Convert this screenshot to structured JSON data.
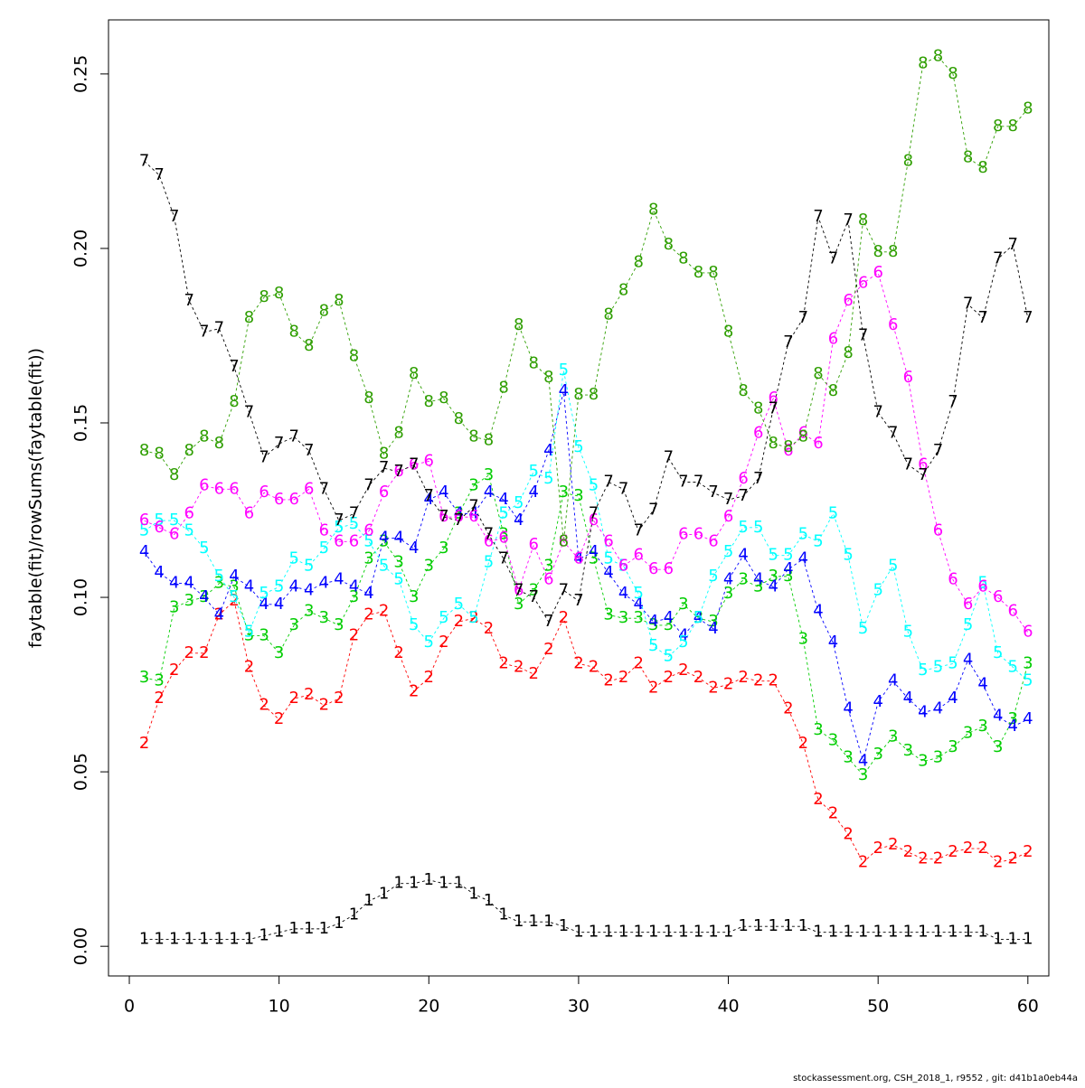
{
  "chart_data": {
    "type": "line",
    "ylabel": "faytable(fit)/rowSums(faytable(fit))",
    "footer": "stockassessment.org, CSH_2018_1, r9552 , git: d41b1a0eb44a",
    "x": [
      1,
      2,
      3,
      4,
      5,
      6,
      7,
      8,
      9,
      10,
      11,
      12,
      13,
      14,
      15,
      16,
      17,
      18,
      19,
      20,
      21,
      22,
      23,
      24,
      25,
      26,
      27,
      28,
      29,
      30,
      31,
      32,
      33,
      34,
      35,
      36,
      37,
      38,
      39,
      40,
      41,
      42,
      43,
      44,
      45,
      46,
      47,
      48,
      49,
      50,
      51,
      52,
      53,
      54,
      55,
      56,
      57,
      58,
      59,
      60
    ],
    "xlim": [
      -1.39,
      61.4
    ],
    "xticks": [
      0,
      10,
      20,
      30,
      40,
      50,
      60
    ],
    "ylim": [
      -0.0085,
      0.2655
    ],
    "yticks": [
      {
        "value": 0,
        "label": "0.00"
      },
      0.05,
      {
        "value": 0.1,
        "label": "0.10"
      },
      0.15,
      {
        "value": 0.2,
        "label": "0.20"
      },
      0.25
    ],
    "series": [
      {
        "name": "1",
        "color": "#000000",
        "values": [
          0.002,
          0.002,
          0.002,
          0.002,
          0.002,
          0.002,
          0.002,
          0.002,
          0.003,
          0.004,
          0.005,
          0.005,
          0.005,
          0.0065,
          0.009,
          0.013,
          0.015,
          0.018,
          0.018,
          0.019,
          0.018,
          0.018,
          0.015,
          0.013,
          0.009,
          0.007,
          0.007,
          0.007,
          0.0057,
          0.004,
          0.004,
          0.004,
          0.004,
          0.004,
          0.004,
          0.004,
          0.004,
          0.004,
          0.004,
          0.004,
          0.0057,
          0.0057,
          0.0057,
          0.0057,
          0.0057,
          0.004,
          0.004,
          0.004,
          0.004,
          0.004,
          0.004,
          0.004,
          0.004,
          0.004,
          0.004,
          0.004,
          0.004,
          0.002,
          0.002,
          0.002
        ]
      },
      {
        "name": "2",
        "color": "#ff0000",
        "values": [
          0.058,
          0.071,
          0.079,
          0.084,
          0.084,
          0.095,
          0.099,
          0.08,
          0.069,
          0.065,
          0.071,
          0.072,
          0.069,
          0.071,
          0.089,
          0.095,
          0.096,
          0.084,
          0.073,
          0.077,
          0.087,
          0.093,
          0.094,
          0.091,
          0.081,
          0.08,
          0.078,
          0.085,
          0.094,
          0.081,
          0.08,
          0.076,
          0.077,
          0.081,
          0.074,
          0.077,
          0.079,
          0.077,
          0.074,
          0.075,
          0.077,
          0.076,
          0.076,
          0.068,
          0.058,
          0.042,
          0.038,
          0.032,
          0.024,
          0.028,
          0.029,
          0.027,
          0.025,
          0.025,
          0.027,
          0.028,
          0.028,
          0.024,
          0.025,
          0.027
        ]
      },
      {
        "name": "3",
        "color": "#00cd00",
        "values": [
          0.077,
          0.076,
          0.097,
          0.099,
          0.1,
          0.104,
          0.103,
          0.089,
          0.089,
          0.084,
          0.092,
          0.096,
          0.094,
          0.092,
          0.1,
          0.111,
          0.116,
          0.11,
          0.1,
          0.109,
          0.114,
          0.124,
          0.132,
          0.135,
          0.118,
          0.098,
          0.102,
          0.109,
          0.13,
          0.129,
          0.111,
          0.095,
          0.094,
          0.094,
          0.092,
          0.092,
          0.098,
          0.094,
          0.093,
          0.101,
          0.105,
          0.103,
          0.106,
          0.106,
          0.088,
          0.062,
          0.059,
          0.054,
          0.049,
          0.055,
          0.06,
          0.056,
          0.053,
          0.054,
          0.057,
          0.061,
          0.063,
          0.057,
          0.065,
          0.081
        ]
      },
      {
        "name": "4",
        "color": "#0000ff",
        "values": [
          0.113,
          0.107,
          0.104,
          0.104,
          0.1,
          0.095,
          0.106,
          0.103,
          0.098,
          0.098,
          0.103,
          0.102,
          0.104,
          0.105,
          0.103,
          0.101,
          0.117,
          0.117,
          0.114,
          0.128,
          0.13,
          0.124,
          0.124,
          0.13,
          0.128,
          0.122,
          0.13,
          0.142,
          0.159,
          0.111,
          0.113,
          0.107,
          0.101,
          0.098,
          0.093,
          0.094,
          0.089,
          0.094,
          0.091,
          0.105,
          0.112,
          0.105,
          0.103,
          0.108,
          0.111,
          0.096,
          0.087,
          0.068,
          0.053,
          0.07,
          0.076,
          0.071,
          0.067,
          0.068,
          0.071,
          0.082,
          0.075,
          0.066,
          0.063,
          0.065
        ]
      },
      {
        "name": "5",
        "color": "#00ffff",
        "values": [
          0.119,
          0.122,
          0.122,
          0.119,
          0.114,
          0.106,
          0.1,
          0.09,
          0.101,
          0.103,
          0.111,
          0.109,
          0.114,
          0.12,
          0.121,
          0.116,
          0.109,
          0.105,
          0.092,
          0.087,
          0.094,
          0.098,
          0.094,
          0.11,
          0.124,
          0.127,
          0.136,
          0.134,
          0.165,
          0.143,
          0.132,
          0.111,
          0.109,
          0.101,
          0.086,
          0.083,
          0.087,
          0.094,
          0.106,
          0.113,
          0.12,
          0.12,
          0.112,
          0.112,
          0.118,
          0.116,
          0.124,
          0.112,
          0.091,
          0.102,
          0.109,
          0.09,
          0.079,
          0.08,
          0.081,
          0.092,
          0.104,
          0.084,
          0.08,
          0.076
        ]
      },
      {
        "name": "6",
        "color": "#ff00ff",
        "values": [
          0.122,
          0.12,
          0.118,
          0.124,
          0.132,
          0.131,
          0.131,
          0.124,
          0.13,
          0.128,
          0.128,
          0.131,
          0.119,
          0.116,
          0.116,
          0.119,
          0.13,
          0.136,
          0.138,
          0.139,
          0.123,
          0.123,
          0.123,
          0.116,
          0.117,
          0.102,
          0.115,
          0.105,
          0.116,
          0.111,
          0.122,
          0.116,
          0.109,
          0.112,
          0.108,
          0.108,
          0.118,
          0.118,
          0.116,
          0.123,
          0.134,
          0.147,
          0.157,
          0.142,
          0.147,
          0.144,
          0.174,
          0.185,
          0.19,
          0.193,
          0.178,
          0.163,
          0.138,
          0.119,
          0.105,
          0.098,
          0.103,
          0.1,
          0.096,
          0.09
        ]
      },
      {
        "name": "7",
        "color": "#000000",
        "values": [
          0.225,
          0.221,
          0.209,
          0.185,
          0.176,
          0.177,
          0.166,
          0.153,
          0.14,
          0.144,
          0.146,
          0.142,
          0.131,
          0.122,
          0.124,
          0.132,
          0.137,
          0.136,
          0.138,
          0.129,
          0.123,
          0.122,
          0.126,
          0.118,
          0.111,
          0.102,
          0.1,
          0.093,
          0.102,
          0.099,
          0.124,
          0.133,
          0.131,
          0.119,
          0.125,
          0.14,
          0.133,
          0.133,
          0.13,
          0.128,
          0.129,
          0.134,
          0.154,
          0.173,
          0.18,
          0.209,
          0.197,
          0.208,
          0.175,
          0.153,
          0.147,
          0.138,
          0.135,
          0.142,
          0.156,
          0.184,
          0.18,
          0.197,
          0.201,
          0.18
        ]
      },
      {
        "name": "8",
        "color": "#2e9e00",
        "values": [
          0.142,
          0.141,
          0.135,
          0.142,
          0.146,
          0.144,
          0.156,
          0.18,
          0.186,
          0.187,
          0.176,
          0.172,
          0.182,
          0.185,
          0.169,
          0.157,
          0.141,
          0.147,
          0.164,
          0.156,
          0.157,
          0.151,
          0.146,
          0.145,
          0.16,
          0.178,
          0.167,
          0.163,
          0.116,
          0.158,
          0.158,
          0.181,
          0.188,
          0.196,
          0.211,
          0.201,
          0.197,
          0.193,
          0.193,
          0.176,
          0.159,
          0.154,
          0.144,
          0.143,
          0.146,
          0.164,
          0.159,
          0.17,
          0.208,
          0.199,
          0.199,
          0.225,
          0.253,
          0.255,
          0.25,
          0.226,
          0.223,
          0.235,
          0.235,
          0.24
        ]
      }
    ]
  }
}
